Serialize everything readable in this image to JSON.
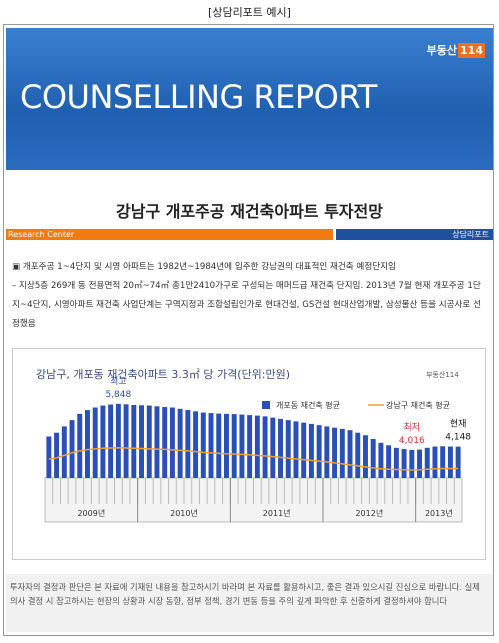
{
  "caption": "[상담리포트 예시]",
  "header": {
    "title": "COUNSELLING REPORT",
    "logo": [
      "부동산",
      "114"
    ]
  },
  "report": {
    "title": "강남구 개포주공 재건축아파트 투자전망",
    "left_tag": "Research Center",
    "right_tag": "상담리포트",
    "paragraphs": [
      "▣ 개포주공 1~4단지 및 시영 아파트는 1982년~1984년에 입주한 강남권의 대표적인 재건축 예정단지임",
      "– 지상5층 269개 동 전용면적 20㎡~74㎡ 총1만2410가구로 구성되는 매머드급 재건축 단지임. 2013년 7월 현재 개포주공 1단지~4단지, 시영아파트 재건축 사업단계는 구역지정과 조합설립인가로 현대건설, GS건설 현대산업개발, 삼성물산 등을 시공사로 선정했음"
    ]
  },
  "chart_data": {
    "type": "bar",
    "title": "강남구, 개포동 재건축아파트 3.3㎡ 당 가격(단위:만원)",
    "logo": "부동산114",
    "categories": [
      null,
      null,
      null,
      null,
      null,
      null,
      null,
      null,
      null,
      null,
      null,
      null,
      null,
      null,
      null,
      null,
      null,
      null,
      null,
      null,
      null,
      null,
      null,
      null,
      null,
      null,
      null,
      null,
      null,
      null,
      null,
      null,
      null,
      null,
      null,
      null,
      null,
      null,
      null,
      null,
      null,
      null,
      null,
      null,
      null,
      null,
      null,
      null,
      null,
      null,
      null,
      null,
      null,
      null
    ],
    "year_labels": [
      "2009년",
      "2010년",
      "2011년",
      "2012년",
      "2013년"
    ],
    "ylim": [
      2900,
      6000
    ],
    "series": [
      {
        "name": "개포동 재건축 평균",
        "type": "bar",
        "color": "#2b4fb8",
        "values": [
          4550,
          4700,
          4950,
          5200,
          5450,
          5600,
          5700,
          5780,
          5820,
          5848,
          5830,
          5800,
          5790,
          5780,
          5750,
          5720,
          5700,
          5650,
          5600,
          5550,
          5500,
          5480,
          5460,
          5450,
          5440,
          5420,
          5400,
          5380,
          5350,
          5300,
          5250,
          5200,
          5150,
          5100,
          5050,
          5000,
          4950,
          4900,
          4850,
          4800,
          4700,
          4600,
          4450,
          4300,
          4200,
          4100,
          4050,
          4016,
          4030,
          4100,
          4150,
          4160,
          4150,
          4148
        ]
      },
      {
        "name": "강남구 재건축 평균",
        "type": "line",
        "color": "#f0a030",
        "values": [
          3650,
          3700,
          3800,
          3900,
          3980,
          4030,
          4060,
          4080,
          4090,
          4100,
          4090,
          4080,
          4070,
          4060,
          4050,
          4040,
          4020,
          4000,
          3980,
          3950,
          3920,
          3900,
          3880,
          3860,
          3850,
          3840,
          3820,
          3800,
          3780,
          3750,
          3720,
          3690,
          3660,
          3630,
          3600,
          3570,
          3540,
          3500,
          3460,
          3420,
          3380,
          3340,
          3300,
          3270,
          3250,
          3240,
          3230,
          3220,
          3230,
          3250,
          3270,
          3280,
          3280,
          3280
        ]
      }
    ],
    "annotations": [
      {
        "title": "최고",
        "value": 5848,
        "label": "5,848",
        "color": "#2b4fb8"
      },
      {
        "title": "최저",
        "value": 4016,
        "label": "4,016",
        "color": "#e03030"
      },
      {
        "title": "현재",
        "value": 4148,
        "label": "4,148",
        "color": "#222222"
      }
    ]
  },
  "footer": {
    "text": "투자자의 결정과 판단은 본 자료에 기재된 내용을 참고하시기 바라며 본 자료를 활용하시고, 좋은 결과 있으시길 진심으로 바랍니다. 실제 의사 결정 시 참고하시는 현장의 상황과 시장 동향, 정부 정책, 경기 변동 등을 주의 깊게 파악한 후 신중하게 결정하셔야 합니다"
  }
}
